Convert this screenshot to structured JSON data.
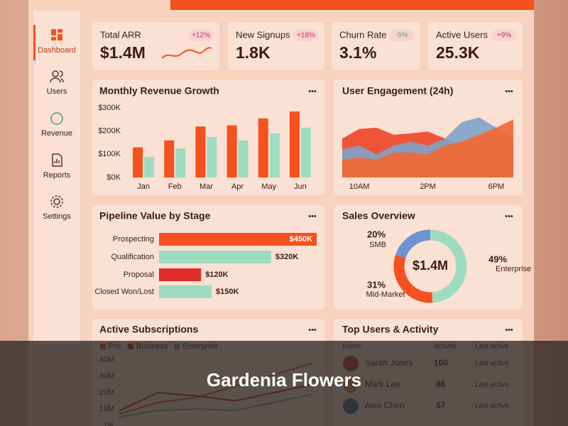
{
  "sidebar": {
    "items": [
      "Dashboard",
      "Users",
      "Revenue",
      "Reports",
      "Settings"
    ],
    "active": 0
  },
  "kpis": [
    {
      "label": "Total ARR",
      "change": "+12%",
      "value": "$1.4M",
      "change_color": "#c2306a"
    },
    {
      "label": "New Signups",
      "change": "+18%",
      "value": "1.8K",
      "change_color": "#c2306a"
    },
    {
      "label": "Churn Rate",
      "change": "-5%",
      "value": "3.1%",
      "change_color": "#5f9a6a"
    },
    {
      "label": "Active Users",
      "change": "+9%",
      "value": "25.3K",
      "change_color": "#c2306a"
    }
  ],
  "chart_data": [
    {
      "type": "bar",
      "title": "Monthly Revenue Growth",
      "categories": [
        "Jan",
        "Feb",
        "Mar",
        "Apr",
        "May",
        "Jun"
      ],
      "series": [
        {
          "color": "#f4511e",
          "values": [
            130000,
            160000,
            220000,
            225000,
            255000,
            285000
          ]
        },
        {
          "color": "#9edcc2",
          "values": [
            90000,
            125000,
            175000,
            160000,
            190000,
            215000
          ]
        }
      ],
      "ylim": [
        0,
        300000
      ],
      "yticks": [
        {
          "value": 0,
          "label": "$0K"
        },
        {
          "value": 100000,
          "label": "$100K"
        },
        {
          "value": 200000,
          "label": "$200K"
        },
        {
          "value": 300000,
          "label": "$300K"
        }
      ],
      "grid": false
    },
    {
      "type": "area",
      "title": "User Engagement (24h)",
      "categories": [
        null,
        "10AM",
        null,
        null,
        null,
        "2PM",
        null,
        null,
        null,
        "6PM",
        null
      ],
      "series": [
        {
          "color": "#ee4527",
          "values": [
            61,
            76,
            78,
            67,
            69,
            72,
            61,
            50,
            39,
            44,
            56
          ]
        },
        {
          "color": "#7fa3c8",
          "values": [
            44,
            50,
            36,
            50,
            56,
            50,
            61,
            87,
            94,
            78,
            61
          ]
        },
        {
          "color": "#f2672f",
          "values": [
            28,
            31,
            28,
            39,
            39,
            36,
            50,
            56,
            67,
            78,
            91
          ]
        }
      ],
      "ylim": [
        0,
        100
      ]
    },
    {
      "type": "bar",
      "orientation": "horizontal",
      "title": "Pipeline Value by Stage",
      "categories": [
        "Prospecting",
        "Qualification",
        "Proposal",
        "Closed Won/Lost"
      ],
      "values": [
        450000,
        320000,
        120000,
        150000
      ],
      "value_labels": [
        "$450K",
        "$320K",
        "$120K",
        "$150K"
      ],
      "colors": [
        "#f4511e",
        "#9edcc2",
        "#e02b2b",
        "#9edcc2"
      ]
    },
    {
      "type": "donut",
      "title": "Sales Overview",
      "center_label": "$1.4M",
      "categories": [
        "Enterprise",
        "Mid-Market",
        "SMB"
      ],
      "values": [
        49,
        31,
        20
      ],
      "value_labels": [
        "49%",
        "31%",
        "20%"
      ],
      "colors": [
        "#9edcc2",
        "#f4511e",
        "#6f92d2"
      ]
    },
    {
      "type": "line",
      "title": "Active Subscriptions",
      "categories": [
        null,
        null,
        null,
        null,
        null,
        null
      ],
      "series": [
        {
          "name": "Pro",
          "color": "#ee4a2a",
          "values": [
            7000000,
            14000000,
            17000000,
            24000000,
            31000000,
            38000000
          ]
        },
        {
          "name": "Business",
          "color": "#b8282a",
          "values": [
            9000000,
            20000000,
            18000000,
            15000000,
            20000000,
            25000000
          ]
        },
        {
          "name": "Enterprise",
          "color": "#5fae93",
          "values": [
            5000000,
            9000000,
            10000000,
            9000000,
            14000000,
            19000000
          ]
        }
      ],
      "ylim": [
        0,
        40000000
      ],
      "yticks": [
        {
          "value": 0,
          "label": "0K"
        },
        {
          "value": 10000000,
          "label": "10M"
        },
        {
          "value": 20000000,
          "label": "20M"
        },
        {
          "value": 30000000,
          "label": "30M"
        },
        {
          "value": 40000000,
          "label": "40M"
        }
      ]
    }
  ],
  "table": {
    "title": "Top Users & Activity",
    "columns": [
      "Name",
      "Activity",
      "Last active"
    ],
    "rows": [
      [
        "Sarah Jones",
        "100",
        "Last active"
      ],
      [
        "Mark Lee",
        "86",
        "Last active"
      ],
      [
        "Alex Chen",
        "57",
        "Last active"
      ]
    ]
  },
  "caption": "Gardenia Flowers"
}
